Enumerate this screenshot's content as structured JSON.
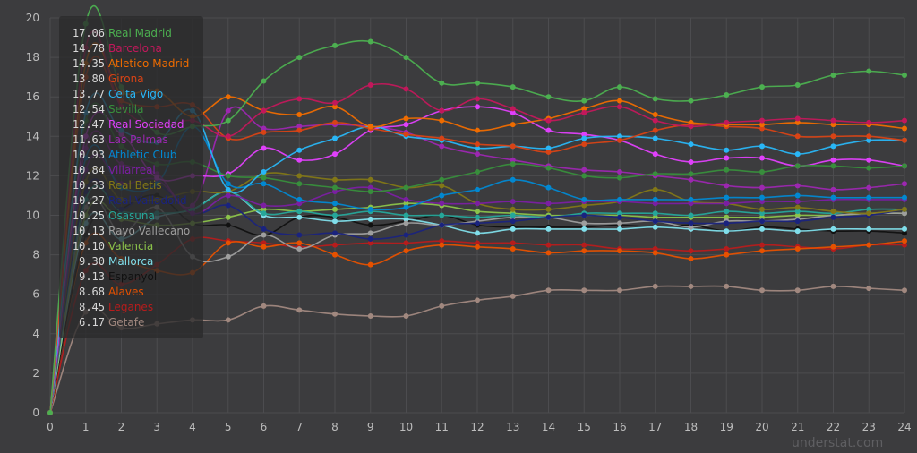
{
  "chart_data": {
    "type": "line",
    "x": [
      0,
      1,
      2,
      3,
      4,
      5,
      6,
      7,
      8,
      9,
      10,
      11,
      12,
      13,
      14,
      15,
      16,
      17,
      18,
      19,
      20,
      21,
      22,
      23,
      24
    ],
    "ylim": [
      0,
      20
    ],
    "xlim": [
      0,
      24
    ],
    "yticks": [
      "0",
      "2",
      "4",
      "6",
      "8",
      "10",
      "12",
      "14",
      "16",
      "18",
      "20"
    ],
    "xticks": [
      "0",
      "1",
      "2",
      "3",
      "4",
      "5",
      "6",
      "7",
      "8",
      "9",
      "10",
      "11",
      "12",
      "13",
      "14",
      "15",
      "16",
      "17",
      "18",
      "19",
      "20",
      "21",
      "22",
      "23",
      "24"
    ],
    "grid": true,
    "legend_position": "top-left",
    "watermark": "understat.com",
    "series": [
      {
        "name": "Real Madrid",
        "legend_value": "17.06",
        "color": "#4caf50",
        "values": [
          0,
          19.7,
          16.5,
          14.2,
          14.5,
          14.8,
          16.8,
          18.0,
          18.6,
          18.8,
          18.0,
          16.7,
          16.7,
          16.5,
          16.0,
          15.8,
          16.5,
          15.9,
          15.8,
          16.1,
          16.5,
          16.6,
          17.1,
          17.3,
          17.1
        ]
      },
      {
        "name": "Barcelona",
        "legend_value": "14.78",
        "color": "#c2185b",
        "values": [
          0,
          18.5,
          15.5,
          14.5,
          14.8,
          14.0,
          15.3,
          15.9,
          15.7,
          16.6,
          16.4,
          15.3,
          15.9,
          15.4,
          14.8,
          15.2,
          15.5,
          14.8,
          14.5,
          14.7,
          14.8,
          14.9,
          14.8,
          14.7,
          14.8
        ]
      },
      {
        "name": "Atletico Madrid",
        "legend_value": "14.35",
        "color": "#ef6c00",
        "values": [
          0,
          17.7,
          16.2,
          16.3,
          15.0,
          16.0,
          15.3,
          15.1,
          15.5,
          14.5,
          14.9,
          14.8,
          14.3,
          14.6,
          14.9,
          15.4,
          15.8,
          15.1,
          14.7,
          14.6,
          14.6,
          14.7,
          14.6,
          14.6,
          14.4
        ]
      },
      {
        "name": "Girona",
        "legend_value": "13.80",
        "color": "#d84315",
        "values": [
          0,
          17.0,
          15.8,
          15.5,
          15.6,
          13.9,
          14.2,
          14.3,
          14.7,
          14.4,
          14.1,
          13.9,
          13.6,
          13.5,
          13.2,
          13.6,
          13.8,
          14.3,
          14.6,
          14.5,
          14.4,
          14.0,
          14.0,
          14.0,
          13.8
        ]
      },
      {
        "name": "Celta Vigo",
        "legend_value": "13.77",
        "color": "#29b6f6",
        "values": [
          0,
          15.2,
          14.3,
          13.7,
          15.3,
          11.3,
          12.2,
          13.3,
          13.9,
          14.5,
          14.0,
          13.8,
          13.4,
          13.5,
          13.4,
          13.9,
          14.0,
          13.9,
          13.6,
          13.3,
          13.5,
          13.1,
          13.5,
          13.8,
          13.8
        ]
      },
      {
        "name": "Sevilla",
        "legend_value": "12.54",
        "color": "#388e3c",
        "values": [
          0,
          14.8,
          13.5,
          12.6,
          12.7,
          12.0,
          11.9,
          11.6,
          11.4,
          11.2,
          11.4,
          11.8,
          12.2,
          12.6,
          12.4,
          12.0,
          11.9,
          12.1,
          12.1,
          12.3,
          12.2,
          12.5,
          12.5,
          12.4,
          12.5
        ]
      },
      {
        "name": "Real Sociedad",
        "legend_value": "12.47",
        "color": "#e040fb",
        "values": [
          0,
          14.0,
          14.1,
          11.9,
          12.0,
          12.1,
          13.4,
          12.8,
          13.1,
          14.3,
          14.6,
          15.3,
          15.5,
          15.2,
          14.3,
          14.1,
          13.8,
          13.1,
          12.7,
          12.9,
          12.9,
          12.5,
          12.8,
          12.8,
          12.5
        ]
      },
      {
        "name": "Las Palmas",
        "legend_value": "11.63",
        "color": "#9c27b0",
        "values": [
          0,
          13.4,
          12.6,
          12.1,
          10.5,
          15.3,
          14.4,
          14.5,
          14.6,
          14.5,
          14.2,
          13.5,
          13.1,
          12.8,
          12.5,
          12.3,
          12.2,
          12.0,
          11.8,
          11.5,
          11.4,
          11.5,
          11.3,
          11.4,
          11.6
        ]
      },
      {
        "name": "Athletic Club",
        "legend_value": "10.93",
        "color": "#0288d1",
        "values": [
          0,
          12.9,
          11.4,
          11.6,
          14.5,
          11.6,
          11.6,
          10.8,
          10.6,
          10.3,
          10.4,
          11.0,
          11.3,
          11.8,
          11.4,
          10.8,
          10.8,
          10.8,
          10.8,
          10.9,
          10.9,
          11.0,
          10.9,
          10.9,
          10.9
        ]
      },
      {
        "name": "Villarreal",
        "legend_value": "10.84",
        "color": "#7b1fa2",
        "values": [
          0,
          12.3,
          11.6,
          11.8,
          10.1,
          11.0,
          10.5,
          10.6,
          11.2,
          11.4,
          10.8,
          10.6,
          10.6,
          10.7,
          10.6,
          10.7,
          10.7,
          10.6,
          10.6,
          10.6,
          10.7,
          10.7,
          10.8,
          10.8,
          10.8
        ]
      },
      {
        "name": "Real Betis",
        "legend_value": "10.33",
        "color": "#827717",
        "values": [
          0,
          11.7,
          10.8,
          10.8,
          11.2,
          11.2,
          12.1,
          12.0,
          11.8,
          11.8,
          11.4,
          11.5,
          10.6,
          10.3,
          10.3,
          10.5,
          10.7,
          11.3,
          10.7,
          10.6,
          10.3,
          10.4,
          10.2,
          10.1,
          10.3
        ]
      },
      {
        "name": "Real Valladolid",
        "legend_value": "10.27",
        "color": "#1a237e",
        "values": [
          0,
          11.2,
          10.3,
          11.5,
          10.1,
          10.5,
          9.3,
          9.0,
          9.1,
          8.8,
          9.0,
          9.5,
          9.6,
          9.7,
          9.9,
          10.0,
          9.9,
          9.7,
          9.6,
          9.6,
          9.7,
          9.7,
          9.9,
          10.0,
          10.3
        ]
      },
      {
        "name": "Osasuna",
        "legend_value": "10.25",
        "color": "#26a69a",
        "values": [
          0,
          10.8,
          10.2,
          10.1,
          10.3,
          11.2,
          10.1,
          10.2,
          10.0,
          10.2,
          10.0,
          10.0,
          9.9,
          10.0,
          9.9,
          10.1,
          10.1,
          10.1,
          10.0,
          10.2,
          10.1,
          10.2,
          10.1,
          10.3,
          10.3
        ]
      },
      {
        "name": "Rayo Vallecano",
        "legend_value": "10.13",
        "color": "#9e9e9e",
        "values": [
          0,
          10.4,
          9.1,
          10.4,
          7.9,
          7.9,
          9.0,
          8.3,
          9.0,
          9.1,
          9.6,
          9.5,
          9.7,
          9.9,
          9.9,
          9.6,
          9.6,
          9.7,
          9.4,
          9.7,
          9.7,
          9.8,
          10.0,
          10.1,
          10.1
        ]
      },
      {
        "name": "Valencia",
        "legend_value": "10.10",
        "color": "#8bc34a",
        "values": [
          0,
          10.0,
          9.8,
          9.5,
          9.6,
          9.9,
          10.3,
          10.2,
          10.3,
          10.4,
          10.6,
          10.5,
          10.2,
          10.1,
          10.0,
          10.0,
          10.0,
          9.9,
          9.9,
          9.9,
          9.9,
          10.0,
          10.0,
          10.1,
          10.1
        ]
      },
      {
        "name": "Mallorca",
        "legend_value": "9.30",
        "color": "#80deea",
        "values": [
          0,
          9.6,
          8.8,
          9.9,
          10.3,
          11.2,
          10.0,
          9.9,
          9.7,
          9.8,
          9.8,
          9.5,
          9.1,
          9.3,
          9.3,
          9.3,
          9.3,
          9.4,
          9.3,
          9.2,
          9.3,
          9.2,
          9.3,
          9.3,
          9.3
        ]
      },
      {
        "name": "Espanyol",
        "legend_value": "9.13",
        "color": "#111111",
        "values": [
          0,
          9.0,
          10.3,
          11.0,
          9.6,
          9.5,
          9.0,
          9.9,
          9.9,
          9.5,
          9.7,
          10.0,
          9.5,
          9.4,
          9.4,
          9.4,
          9.5,
          9.4,
          9.5,
          9.2,
          9.4,
          9.3,
          9.2,
          9.2,
          9.1
        ]
      },
      {
        "name": "Alaves",
        "legend_value": "8.68",
        "color": "#e65100",
        "values": [
          0,
          8.6,
          7.8,
          7.2,
          7.1,
          8.6,
          8.4,
          8.6,
          8.0,
          7.5,
          8.2,
          8.5,
          8.4,
          8.3,
          8.1,
          8.2,
          8.2,
          8.1,
          7.8,
          8.0,
          8.2,
          8.3,
          8.4,
          8.5,
          8.7
        ]
      },
      {
        "name": "Leganes",
        "legend_value": "8.45",
        "color": "#b71c1c",
        "values": [
          0,
          7.2,
          6.5,
          7.5,
          8.8,
          8.7,
          8.6,
          8.4,
          8.5,
          8.6,
          8.6,
          8.7,
          8.6,
          8.6,
          8.5,
          8.5,
          8.3,
          8.3,
          8.2,
          8.3,
          8.5,
          8.4,
          8.3,
          8.5,
          8.5
        ]
      },
      {
        "name": "Getafe",
        "legend_value": "6.17",
        "color": "#a1887f",
        "values": [
          0,
          5.1,
          4.3,
          4.5,
          4.7,
          4.7,
          5.4,
          5.2,
          5.0,
          4.9,
          4.9,
          5.4,
          5.7,
          5.9,
          6.2,
          6.2,
          6.2,
          6.4,
          6.4,
          6.4,
          6.2,
          6.2,
          6.4,
          6.3,
          6.2
        ]
      }
    ]
  }
}
